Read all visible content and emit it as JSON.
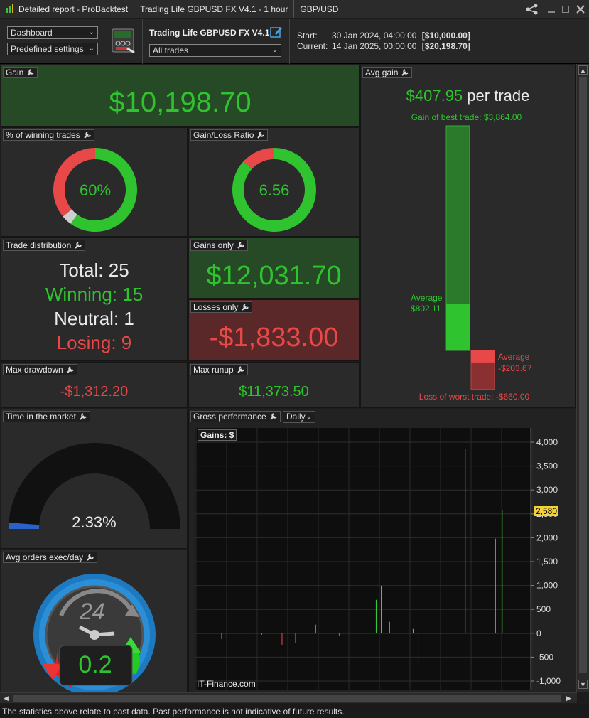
{
  "titlebar": {
    "app": "Detailed report - ProBacktest",
    "strategy": "Trading Life GBPUSD FX V4.1 - 1 hour",
    "instrument": "GBP/USD"
  },
  "toolbar": {
    "view_select": "Dashboard",
    "settings_select": "Predefined settings",
    "strategy_name": "Trading Life GBPUSD FX V4.1",
    "trades_select": "All trades",
    "start_label": "Start:",
    "start_date": "30 Jan 2024, 04:00:00",
    "start_value": "[$10,000.00]",
    "current_label": "Current:",
    "current_date": "14 Jan 2025, 00:00:00",
    "current_value": "[$20,198.70]"
  },
  "gain": {
    "title": "Gain",
    "value": "$10,198.70"
  },
  "winning_pct": {
    "title": "% of winning trades",
    "value": "60%",
    "win_fraction": 0.6,
    "neutral_fraction": 0.04,
    "lose_fraction": 0.36
  },
  "gain_loss_ratio": {
    "title": "Gain/Loss Ratio",
    "value": "6.56",
    "gain_fraction": 0.868
  },
  "trade_distribution": {
    "title": "Trade distribution",
    "total_label": "Total:",
    "total": "25",
    "winning_label": "Winning:",
    "winning": "15",
    "neutral_label": "Neutral:",
    "neutral": "1",
    "losing_label": "Losing:",
    "losing": "9"
  },
  "gains_only": {
    "title": "Gains only",
    "value": "$12,031.70"
  },
  "losses_only": {
    "title": "Losses only",
    "value": "-$1,833.00"
  },
  "max_drawdown": {
    "title": "Max drawdown",
    "value": "-$1,312.20"
  },
  "max_runup": {
    "title": "Max runup",
    "value": "$11,373.50"
  },
  "avg_gain": {
    "title": "Avg gain",
    "value": "$407.95",
    "per_trade": "per trade",
    "best_label": "Gain of best trade: $3,864.00",
    "avg_gain_label_1": "Average",
    "avg_gain_label_2": "$802.11",
    "avg_loss_label_1": "Average",
    "avg_loss_label_2": "-$203.67",
    "worst_label": "Loss of worst trade: -$660.00",
    "best": 3864.0,
    "avg_win": 802.11,
    "avg_loss": -203.67,
    "worst": -660.0
  },
  "time_in_market": {
    "title": "Time in the market",
    "value": "2.33%",
    "fraction": 0.0233
  },
  "avg_orders": {
    "title": "Avg orders exec/day",
    "value": "0.2",
    "clock_number": "24"
  },
  "gross_performance": {
    "title": "Gross performance",
    "period_select": "Daily",
    "gains_label": "Gains: $",
    "watermark": "IT-Finance.com",
    "last_value_badge": "2,580"
  },
  "chart_data": {
    "type": "bar",
    "title": "",
    "ylabel": "Gains: $",
    "ylim": [
      -1000,
      4000
    ],
    "yticks": [
      "4,000",
      "3,500",
      "3,000",
      "2,500",
      "2,000",
      "1,500",
      "1,000",
      "500",
      "0",
      "-500",
      "-1,000"
    ],
    "ytick_values": [
      4000,
      3500,
      3000,
      2500,
      2000,
      1500,
      1000,
      500,
      0,
      -500,
      -1000
    ],
    "series": [
      {
        "values": [
          -120,
          -100,
          40,
          -30,
          -240,
          -210,
          180,
          -50,
          700,
          980,
          240,
          90,
          -680,
          3864,
          1980,
          2580
        ]
      }
    ],
    "x_index": [
      0.08,
      0.09,
      0.17,
      0.2,
      0.26,
      0.3,
      0.36,
      0.43,
      0.54,
      0.555,
      0.58,
      0.65,
      0.665,
      0.805,
      0.895,
      0.915
    ],
    "grid": true
  },
  "footer": "The statistics above relate to past data. Past performance is not indicative of future results."
}
